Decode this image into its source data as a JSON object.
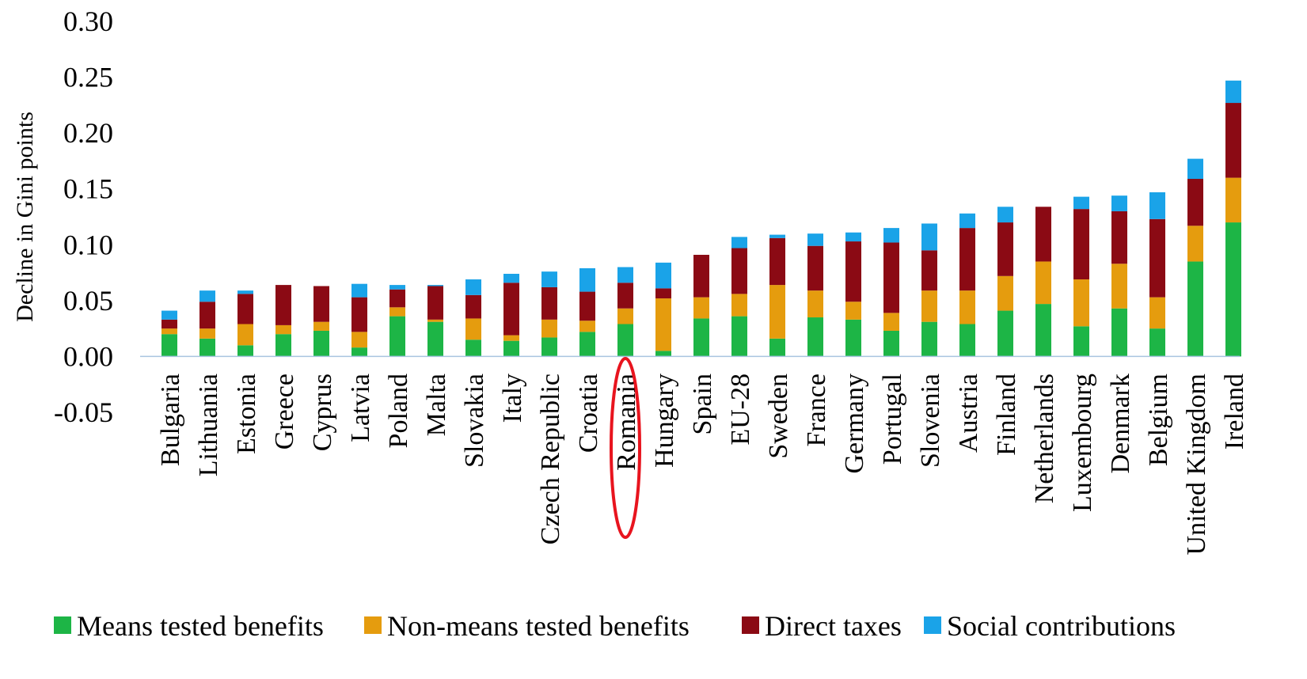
{
  "chart_data": {
    "type": "bar",
    "stacked": true,
    "title": "",
    "xlabel": "",
    "ylabel": "Decline in Gini points",
    "ylim": [
      -0.05,
      0.3
    ],
    "yticks": [
      "0.30",
      "0.25",
      "0.20",
      "0.15",
      "0.10",
      "0.05",
      "0.00",
      "-0.05"
    ],
    "grid": false,
    "legend_position": "bottom",
    "categories": [
      "Bulgaria",
      "Lithuania",
      "Estonia",
      "Greece",
      "Cyprus",
      "Latvia",
      "Poland",
      "Malta",
      "Slovakia",
      "Italy",
      "Czech Republic",
      "Croatia",
      "Romania",
      "Hungary",
      "Spain",
      "EU-28",
      "Sweden",
      "France",
      "Germany",
      "Portugal",
      "Slovenia",
      "Austria",
      "Finland",
      "Netherlands",
      "Luxembourg",
      "Denmark",
      "Belgium",
      "United Kingdom",
      "Ireland"
    ],
    "highlighted_category": "Romania",
    "series": [
      {
        "name": "Means tested benefits",
        "color": "#1db546",
        "values": [
          0.02,
          0.016,
          0.01,
          0.02,
          0.023,
          0.008,
          0.036,
          0.031,
          0.015,
          0.014,
          0.017,
          0.022,
          0.029,
          0.005,
          0.034,
          0.036,
          0.016,
          0.035,
          0.033,
          0.023,
          0.031,
          0.029,
          0.041,
          0.047,
          0.027,
          0.043,
          0.025,
          0.085,
          0.12
        ]
      },
      {
        "name": "Non-means tested benefits",
        "color": "#e59c0e",
        "values": [
          0.005,
          0.009,
          0.019,
          0.008,
          0.008,
          0.014,
          0.008,
          0.002,
          0.019,
          0.005,
          0.016,
          0.01,
          0.014,
          0.047,
          0.019,
          0.02,
          0.048,
          0.024,
          0.016,
          0.016,
          0.028,
          0.03,
          0.031,
          0.038,
          0.042,
          0.04,
          0.028,
          0.032,
          0.04
        ]
      },
      {
        "name": "Direct taxes",
        "color": "#8b0a14",
        "values": [
          0.008,
          0.024,
          0.027,
          0.036,
          0.032,
          0.031,
          0.016,
          0.03,
          0.021,
          0.047,
          0.029,
          0.026,
          0.023,
          0.009,
          0.038,
          0.041,
          0.042,
          0.04,
          0.054,
          0.063,
          0.036,
          0.056,
          0.048,
          0.049,
          0.063,
          0.047,
          0.07,
          0.042,
          0.067
        ]
      },
      {
        "name": "Social contributions",
        "color": "#1aa3e8",
        "values": [
          0.008,
          0.01,
          0.003,
          0.0,
          0.0,
          0.012,
          0.004,
          0.001,
          0.014,
          0.008,
          0.014,
          0.021,
          0.014,
          0.023,
          0.0,
          0.01,
          0.003,
          0.011,
          0.008,
          0.013,
          0.024,
          0.013,
          0.014,
          0.0,
          0.011,
          0.014,
          0.024,
          0.018,
          0.02
        ]
      }
    ]
  }
}
